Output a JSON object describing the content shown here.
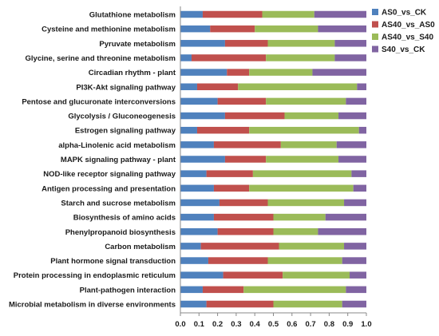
{
  "chart_data": {
    "type": "bar",
    "orientation": "horizontal",
    "stacked": true,
    "percent": true,
    "categories": [
      "Glutathione metabolism",
      "Cysteine and methionine metabolism",
      "Pyruvate metabolism",
      "Glycine, serine and threonine metabolism",
      "Circadian rhythm - plant",
      "PI3K-Akt signaling pathway",
      "Pentose and glucuronate interconversions",
      "Glycolysis / Gluconeogenesis",
      "Estrogen signaling pathway",
      "alpha-Linolenic acid metabolism",
      "MAPK signaling pathway - plant",
      "NOD-like receptor signaling pathway",
      "Antigen processing and presentation",
      "Starch and sucrose metabolism",
      "Biosynthesis of amino acids",
      "Phenylpropanoid biosynthesis",
      "Carbon metabolism",
      "Plant hormone signal transduction",
      "Protein processing in endoplasmic reticulum",
      "Plant-pathogen interaction",
      "Microbial metabolism in diverse environments"
    ],
    "series": [
      {
        "name": "AS0_vs_CK",
        "color": "#4f81bd",
        "values": [
          0.12,
          0.16,
          0.24,
          0.06,
          0.25,
          0.09,
          0.2,
          0.24,
          0.09,
          0.18,
          0.24,
          0.14,
          0.18,
          0.21,
          0.18,
          0.2,
          0.11,
          0.15,
          0.23,
          0.12,
          0.14
        ]
      },
      {
        "name": "AS40_vs_AS0",
        "color": "#c0504d",
        "values": [
          0.32,
          0.24,
          0.23,
          0.4,
          0.12,
          0.22,
          0.26,
          0.32,
          0.28,
          0.36,
          0.22,
          0.25,
          0.19,
          0.26,
          0.32,
          0.3,
          0.42,
          0.32,
          0.32,
          0.22,
          0.36
        ]
      },
      {
        "name": "AS40_vs_S40",
        "color": "#9bbb59",
        "values": [
          0.28,
          0.34,
          0.36,
          0.37,
          0.34,
          0.64,
          0.43,
          0.29,
          0.59,
          0.3,
          0.39,
          0.53,
          0.56,
          0.41,
          0.28,
          0.24,
          0.35,
          0.4,
          0.36,
          0.55,
          0.37
        ]
      },
      {
        "name": "S40_vs_CK",
        "color": "#8064a2",
        "values": [
          0.28,
          0.26,
          0.17,
          0.17,
          0.29,
          0.05,
          0.11,
          0.15,
          0.04,
          0.16,
          0.15,
          0.08,
          0.07,
          0.12,
          0.22,
          0.26,
          0.12,
          0.13,
          0.09,
          0.11,
          0.13
        ]
      }
    ],
    "xlim": [
      0,
      1.0
    ],
    "xticks": [
      "0.0",
      "0.1",
      "0.2",
      "0.3",
      "0.4",
      "0.5",
      "0.6",
      "0.7",
      "0.8",
      "0.9",
      "1.0"
    ],
    "title": "",
    "xlabel": "",
    "ylabel": "",
    "grid": false,
    "legend_position": "top-right"
  }
}
